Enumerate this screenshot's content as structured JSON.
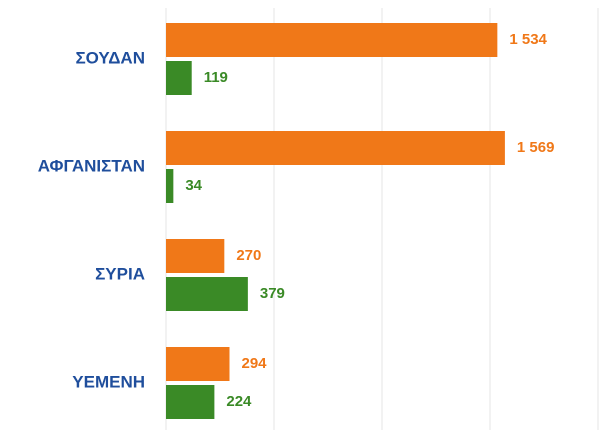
{
  "chart_data": {
    "type": "hbar",
    "categories": [
      "ΣΟΥΔΑΝ",
      "ΑΦΓΑΝΙΣΤΑΝ",
      "ΣΥΡΙΑ",
      "ΥΕΜΕΝΗ"
    ],
    "series": [
      {
        "color": "#f07818",
        "values": [
          1534,
          1569,
          270,
          294
        ],
        "value_labels": [
          "1 534",
          "1 569",
          "270",
          "294"
        ]
      },
      {
        "color": "#3a8a26",
        "values": [
          119,
          34,
          379,
          224
        ]
      }
    ],
    "xlim": [
      0,
      2000
    ],
    "xticks": [
      0,
      500,
      1000,
      1500,
      2000
    ],
    "grid": true
  }
}
